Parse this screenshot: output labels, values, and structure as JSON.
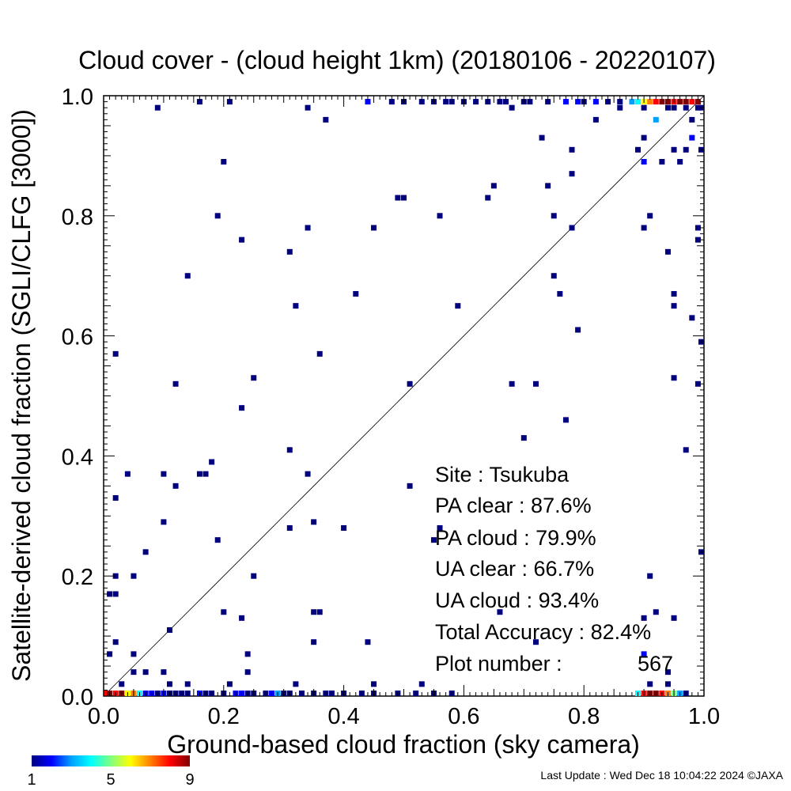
{
  "chart_data": {
    "type": "scatter",
    "title": "Cloud cover - (cloud height 1km)  (20180106 - 20220107)",
    "xlabel": "Ground-based cloud fraction (sky camera)",
    "ylabel": "Satellite-derived cloud fraction (SGLI/CLFG [3000])",
    "xlim": [
      0.0,
      1.0
    ],
    "ylim": [
      0.0,
      1.0
    ],
    "x_ticks": [
      "0.0",
      "0.2",
      "0.4",
      "0.6",
      "0.8",
      "1.0"
    ],
    "y_ticks": [
      "0.0",
      "0.2",
      "0.4",
      "0.6",
      "0.8",
      "1.0"
    ],
    "grid": false,
    "reference_line": "y = x",
    "colorbar": {
      "labels": [
        "1",
        "5",
        "9"
      ],
      "range": [
        1,
        9
      ],
      "stops": [
        "#00007f",
        "#0000ff",
        "#00a0ff",
        "#00ffff",
        "#80ff80",
        "#ffff00",
        "#ff8000",
        "#ff0000",
        "#800000"
      ]
    },
    "points": [
      [
        0.16,
        0.99,
        1
      ],
      [
        0.21,
        0.99,
        1
      ],
      [
        0.44,
        0.99,
        2
      ],
      [
        0.48,
        0.99,
        1
      ],
      [
        0.5,
        0.99,
        1
      ],
      [
        0.53,
        0.99,
        1
      ],
      [
        0.55,
        0.99,
        1
      ],
      [
        0.57,
        0.99,
        1
      ],
      [
        0.58,
        0.99,
        1
      ],
      [
        0.6,
        0.99,
        1
      ],
      [
        0.62,
        0.99,
        1
      ],
      [
        0.64,
        0.99,
        1
      ],
      [
        0.66,
        0.99,
        1
      ],
      [
        0.67,
        0.99,
        1
      ],
      [
        0.7,
        0.99,
        1
      ],
      [
        0.71,
        0.99,
        1
      ],
      [
        0.74,
        0.99,
        1
      ],
      [
        0.77,
        0.99,
        2
      ],
      [
        0.79,
        0.99,
        2
      ],
      [
        0.8,
        0.99,
        1
      ],
      [
        0.82,
        0.99,
        2
      ],
      [
        0.84,
        0.99,
        1
      ],
      [
        0.86,
        0.99,
        1
      ],
      [
        0.88,
        0.99,
        3
      ],
      [
        0.89,
        0.99,
        4
      ],
      [
        0.9,
        0.99,
        6
      ],
      [
        0.91,
        0.99,
        7
      ],
      [
        0.92,
        0.99,
        8
      ],
      [
        0.93,
        0.99,
        9
      ],
      [
        0.94,
        0.99,
        9
      ],
      [
        0.95,
        0.99,
        8
      ],
      [
        0.96,
        0.99,
        9
      ],
      [
        0.97,
        0.99,
        9
      ],
      [
        0.98,
        0.99,
        8
      ],
      [
        0.99,
        0.99,
        9
      ],
      [
        0.09,
        0.98,
        1
      ],
      [
        0.34,
        0.98,
        1
      ],
      [
        0.68,
        0.98,
        1
      ],
      [
        0.86,
        0.98,
        1
      ],
      [
        0.9,
        0.98,
        1
      ],
      [
        0.94,
        0.98,
        1
      ],
      [
        0.95,
        0.98,
        1
      ],
      [
        0.97,
        0.98,
        1
      ],
      [
        0.99,
        0.98,
        1
      ],
      [
        1.0,
        0.98,
        1
      ],
      [
        0.37,
        0.96,
        1
      ],
      [
        0.82,
        0.96,
        1
      ],
      [
        0.92,
        0.96,
        3
      ],
      [
        0.98,
        0.96,
        1
      ],
      [
        0.73,
        0.93,
        1
      ],
      [
        0.9,
        0.93,
        1
      ],
      [
        0.98,
        0.93,
        2
      ],
      [
        0.78,
        0.91,
        1
      ],
      [
        0.89,
        0.91,
        1
      ],
      [
        0.95,
        0.91,
        1
      ],
      [
        0.97,
        0.91,
        1
      ],
      [
        1.0,
        0.91,
        1
      ],
      [
        0.2,
        0.89,
        1
      ],
      [
        0.9,
        0.89,
        2
      ],
      [
        0.93,
        0.89,
        1
      ],
      [
        0.96,
        0.89,
        1
      ],
      [
        0.78,
        0.87,
        1
      ],
      [
        0.65,
        0.85,
        1
      ],
      [
        0.74,
        0.85,
        1
      ],
      [
        0.49,
        0.83,
        1
      ],
      [
        0.5,
        0.83,
        1
      ],
      [
        0.64,
        0.83,
        1
      ],
      [
        0.19,
        0.8,
        1
      ],
      [
        0.56,
        0.8,
        1
      ],
      [
        0.75,
        0.8,
        1
      ],
      [
        0.91,
        0.8,
        1
      ],
      [
        0.34,
        0.78,
        1
      ],
      [
        0.45,
        0.78,
        1
      ],
      [
        0.78,
        0.78,
        1
      ],
      [
        0.9,
        0.78,
        1
      ],
      [
        0.99,
        0.78,
        1
      ],
      [
        0.23,
        0.76,
        1
      ],
      [
        0.99,
        0.76,
        1
      ],
      [
        0.31,
        0.74,
        1
      ],
      [
        0.94,
        0.74,
        1
      ],
      [
        0.14,
        0.7,
        1
      ],
      [
        0.75,
        0.7,
        1
      ],
      [
        0.42,
        0.67,
        1
      ],
      [
        0.76,
        0.67,
        1
      ],
      [
        0.95,
        0.67,
        1
      ],
      [
        0.32,
        0.65,
        1
      ],
      [
        0.59,
        0.65,
        1
      ],
      [
        0.95,
        0.65,
        1
      ],
      [
        0.98,
        0.63,
        1
      ],
      [
        0.79,
        0.61,
        1
      ],
      [
        1.0,
        0.59,
        1
      ],
      [
        0.02,
        0.57,
        1
      ],
      [
        0.36,
        0.57,
        1
      ],
      [
        0.25,
        0.53,
        1
      ],
      [
        0.95,
        0.53,
        1
      ],
      [
        0.12,
        0.52,
        1
      ],
      [
        0.51,
        0.52,
        1
      ],
      [
        0.68,
        0.52,
        1
      ],
      [
        0.72,
        0.52,
        1
      ],
      [
        0.99,
        0.52,
        1
      ],
      [
        0.23,
        0.48,
        1
      ],
      [
        0.77,
        0.46,
        1
      ],
      [
        0.7,
        0.43,
        1
      ],
      [
        0.31,
        0.41,
        1
      ],
      [
        0.97,
        0.41,
        1
      ],
      [
        0.18,
        0.39,
        1
      ],
      [
        0.04,
        0.37,
        1
      ],
      [
        0.1,
        0.37,
        1
      ],
      [
        0.16,
        0.37,
        1
      ],
      [
        0.17,
        0.37,
        1
      ],
      [
        0.34,
        0.37,
        1
      ],
      [
        0.12,
        0.35,
        1
      ],
      [
        0.51,
        0.35,
        1
      ],
      [
        0.02,
        0.33,
        1
      ],
      [
        0.1,
        0.29,
        1
      ],
      [
        0.35,
        0.29,
        1
      ],
      [
        0.31,
        0.28,
        1
      ],
      [
        0.4,
        0.28,
        1
      ],
      [
        0.56,
        0.28,
        1
      ],
      [
        0.19,
        0.26,
        1
      ],
      [
        0.55,
        0.26,
        1
      ],
      [
        0.07,
        0.24,
        1
      ],
      [
        1.0,
        0.24,
        1
      ],
      [
        0.02,
        0.2,
        1
      ],
      [
        0.05,
        0.2,
        1
      ],
      [
        0.25,
        0.2,
        1
      ],
      [
        0.91,
        0.2,
        1
      ],
      [
        0.01,
        0.17,
        1
      ],
      [
        0.02,
        0.17,
        1
      ],
      [
        0.2,
        0.14,
        1
      ],
      [
        0.35,
        0.14,
        1
      ],
      [
        0.36,
        0.14,
        1
      ],
      [
        0.66,
        0.14,
        1
      ],
      [
        0.92,
        0.14,
        1
      ],
      [
        0.23,
        0.13,
        1
      ],
      [
        0.9,
        0.13,
        1
      ],
      [
        0.95,
        0.13,
        1
      ],
      [
        0.11,
        0.11,
        1
      ],
      [
        0.02,
        0.09,
        1
      ],
      [
        0.35,
        0.09,
        1
      ],
      [
        0.44,
        0.09,
        1
      ],
      [
        0.72,
        0.09,
        1
      ],
      [
        0.01,
        0.07,
        1
      ],
      [
        0.05,
        0.07,
        1
      ],
      [
        0.24,
        0.07,
        1
      ],
      [
        0.9,
        0.07,
        2
      ],
      [
        0.05,
        0.04,
        1
      ],
      [
        0.07,
        0.04,
        1
      ],
      [
        0.1,
        0.04,
        1
      ],
      [
        0.24,
        0.04,
        1
      ],
      [
        0.94,
        0.04,
        1
      ],
      [
        0.03,
        0.02,
        1
      ],
      [
        0.11,
        0.02,
        1
      ],
      [
        0.14,
        0.02,
        1
      ],
      [
        0.21,
        0.02,
        1
      ],
      [
        0.32,
        0.02,
        1
      ],
      [
        0.45,
        0.02,
        1
      ],
      [
        0.53,
        0.02,
        1
      ],
      [
        0.91,
        0.02,
        1
      ],
      [
        0.94,
        0.02,
        1
      ],
      [
        0.0,
        0.0,
        8
      ],
      [
        0.01,
        0.0,
        9
      ],
      [
        0.02,
        0.0,
        8
      ],
      [
        0.03,
        0.0,
        9
      ],
      [
        0.04,
        0.0,
        6
      ],
      [
        0.05,
        0.0,
        7
      ],
      [
        0.06,
        0.0,
        4
      ],
      [
        0.07,
        0.0,
        2
      ],
      [
        0.08,
        0.0,
        2
      ],
      [
        0.09,
        0.0,
        1
      ],
      [
        0.1,
        0.0,
        2
      ],
      [
        0.11,
        0.0,
        1
      ],
      [
        0.12,
        0.0,
        1
      ],
      [
        0.13,
        0.0,
        1
      ],
      [
        0.14,
        0.0,
        1
      ],
      [
        0.16,
        0.0,
        2
      ],
      [
        0.17,
        0.0,
        1
      ],
      [
        0.18,
        0.0,
        1
      ],
      [
        0.2,
        0.0,
        1
      ],
      [
        0.22,
        0.0,
        2
      ],
      [
        0.23,
        0.0,
        2
      ],
      [
        0.24,
        0.0,
        1
      ],
      [
        0.25,
        0.0,
        1
      ],
      [
        0.27,
        0.0,
        1
      ],
      [
        0.28,
        0.0,
        2
      ],
      [
        0.29,
        0.0,
        3
      ],
      [
        0.3,
        0.0,
        1
      ],
      [
        0.31,
        0.0,
        1
      ],
      [
        0.33,
        0.0,
        1
      ],
      [
        0.35,
        0.0,
        1
      ],
      [
        0.37,
        0.0,
        1
      ],
      [
        0.38,
        0.0,
        1
      ],
      [
        0.4,
        0.0,
        1
      ],
      [
        0.43,
        0.0,
        1
      ],
      [
        0.45,
        0.0,
        1
      ],
      [
        0.49,
        0.0,
        1
      ],
      [
        0.52,
        0.0,
        1
      ],
      [
        0.55,
        0.0,
        1
      ],
      [
        0.58,
        0.0,
        1
      ],
      [
        0.89,
        0.0,
        4
      ],
      [
        0.9,
        0.0,
        8
      ],
      [
        0.91,
        0.0,
        9
      ],
      [
        0.92,
        0.0,
        9
      ],
      [
        0.93,
        0.0,
        8
      ],
      [
        0.94,
        0.0,
        7
      ],
      [
        0.95,
        0.0,
        5
      ],
      [
        0.96,
        0.0,
        3
      ],
      [
        0.97,
        0.0,
        1
      ]
    ],
    "annotations": {
      "site_label": "Site : Tsukuba",
      "pa_clear": "PA clear :  87.6%",
      "pa_cloud": "PA cloud :  79.9%",
      "ua_clear": "UA clear :  66.7%",
      "ua_cloud": "UA cloud :  93.4%",
      "total_accuracy": "Total Accuracy :  82.4%",
      "plot_number_label": "Plot number :",
      "plot_number_value": "567"
    }
  },
  "footer": {
    "last_update": "Last Update : Wed Dec 18 10:04:22 2024  ©JAXA"
  }
}
